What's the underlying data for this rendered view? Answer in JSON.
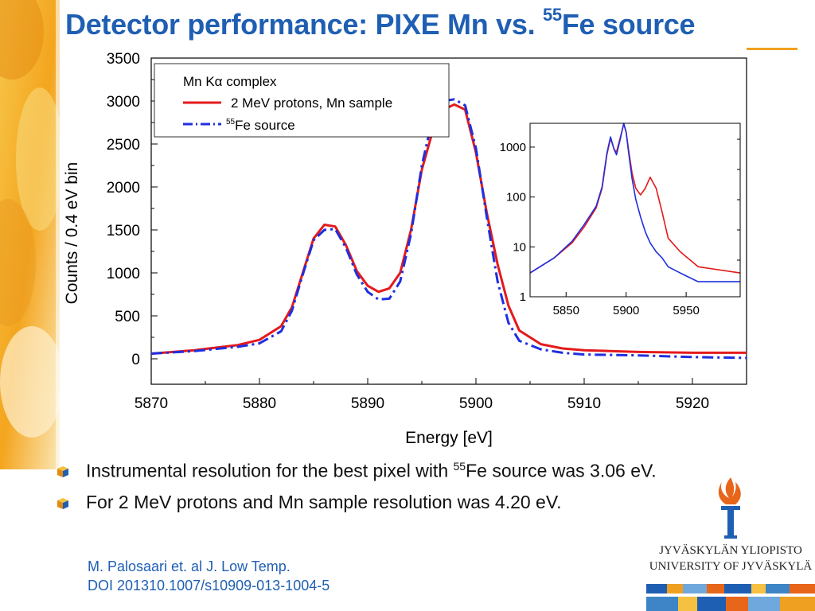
{
  "slide": {
    "title_main": "Detector performance: PIXE Mn vs. ",
    "title_sup": "55",
    "title_tail": "Fe source",
    "accent_color": "#1f5fb3",
    "underline_color": "#f0a020"
  },
  "bullets": [
    {
      "pre": "Instrumental resolution for the best pixel with ",
      "sup": "55",
      "post": "Fe source was 3.06 eV."
    },
    {
      "pre": "For 2 MeV protons and Mn sample resolution was 4.20 eV.",
      "sup": "",
      "post": ""
    }
  ],
  "citation": {
    "line1": "M. Palosaari et. al J. Low Temp.",
    "line2": "DOI 201310.1007/s10909-013-1004-5"
  },
  "logo": {
    "line1": "JYVÄSKYLÄN YLIOPISTO",
    "line2": "UNIVERSITY OF JYVÄSKYLÄ",
    "icon": "torch-icon"
  },
  "chart_data": [
    {
      "type": "line",
      "xlabel": "Energy [eV]",
      "ylabel": "Counts / 0.4 eV bin",
      "xlim": [
        5870,
        5925
      ],
      "ylim": [
        0,
        3500
      ],
      "xticks": [
        5870,
        5880,
        5890,
        5900,
        5910,
        5920
      ],
      "yticks": [
        0,
        500,
        1000,
        1500,
        2000,
        2500,
        3000,
        3500
      ],
      "legend": {
        "title": "Mn Kα complex",
        "placement": "top-left"
      },
      "series": [
        {
          "name": "2 MeV protons, Mn sample",
          "color": "#e41a1c",
          "style": "solid",
          "x": [
            5870,
            5874,
            5878,
            5880,
            5882,
            5883,
            5884,
            5885,
            5886,
            5887,
            5888,
            5889,
            5890,
            5891,
            5892,
            5893,
            5894,
            5895,
            5896,
            5897,
            5898,
            5899,
            5900,
            5901,
            5902,
            5903,
            5904,
            5906,
            5908,
            5910,
            5915,
            5920,
            5925
          ],
          "y": [
            60,
            100,
            160,
            220,
            380,
            600,
            1000,
            1400,
            1560,
            1540,
            1320,
            1020,
            850,
            780,
            820,
            1000,
            1500,
            2200,
            2650,
            2900,
            2960,
            2900,
            2400,
            1700,
            1100,
            620,
            330,
            170,
            120,
            100,
            80,
            70,
            70
          ]
        },
        {
          "name": "Fe source",
          "name_sup": "55",
          "color": "#1f2fe0",
          "style": "dash-dot",
          "x": [
            5870,
            5874,
            5878,
            5880,
            5882,
            5883,
            5884,
            5885,
            5886,
            5887,
            5888,
            5889,
            5890,
            5891,
            5892,
            5893,
            5894,
            5895,
            5896,
            5897,
            5898,
            5899,
            5900,
            5901,
            5902,
            5903,
            5904,
            5906,
            5908,
            5910,
            5915,
            5920,
            5925
          ],
          "y": [
            60,
            90,
            140,
            180,
            320,
            560,
            980,
            1380,
            1500,
            1510,
            1290,
            980,
            780,
            690,
            700,
            900,
            1450,
            2250,
            2800,
            3000,
            3020,
            2950,
            2450,
            1650,
            900,
            420,
            210,
            110,
            70,
            50,
            40,
            20,
            10
          ]
        }
      ]
    },
    {
      "type": "line",
      "note": "inset",
      "xlim": [
        5820,
        5995
      ],
      "ylim": [
        1,
        3000
      ],
      "yscale": "log",
      "xticks": [
        5850,
        5900,
        5950
      ],
      "yticks": [
        1,
        10,
        100,
        1000
      ],
      "series": [
        {
          "name": "2 MeV protons, Mn sample",
          "color": "#e41a1c",
          "x": [
            5820,
            5840,
            5855,
            5865,
            5875,
            5880,
            5884,
            5887,
            5890,
            5892,
            5895,
            5898,
            5900,
            5902,
            5905,
            5908,
            5912,
            5916,
            5920,
            5925,
            5930,
            5935,
            5945,
            5960,
            5995
          ],
          "y": [
            3,
            6,
            12,
            25,
            60,
            150,
            700,
            1500,
            900,
            800,
            1500,
            2900,
            2000,
            900,
            300,
            150,
            110,
            150,
            250,
            150,
            50,
            15,
            8,
            4,
            3
          ]
        },
        {
          "name": "Fe source",
          "name_sup": "55",
          "color": "#1f2fe0",
          "x": [
            5820,
            5840,
            5855,
            5865,
            5875,
            5880,
            5884,
            5887,
            5890,
            5892,
            5895,
            5898,
            5900,
            5902,
            5905,
            5908,
            5912,
            5916,
            5920,
            5925,
            5930,
            5935,
            5945,
            5960,
            5995
          ],
          "y": [
            3,
            6,
            13,
            28,
            65,
            160,
            750,
            1600,
            900,
            700,
            1400,
            3000,
            2000,
            800,
            230,
            90,
            40,
            20,
            12,
            8,
            6,
            4,
            3,
            2,
            2
          ]
        }
      ]
    }
  ]
}
